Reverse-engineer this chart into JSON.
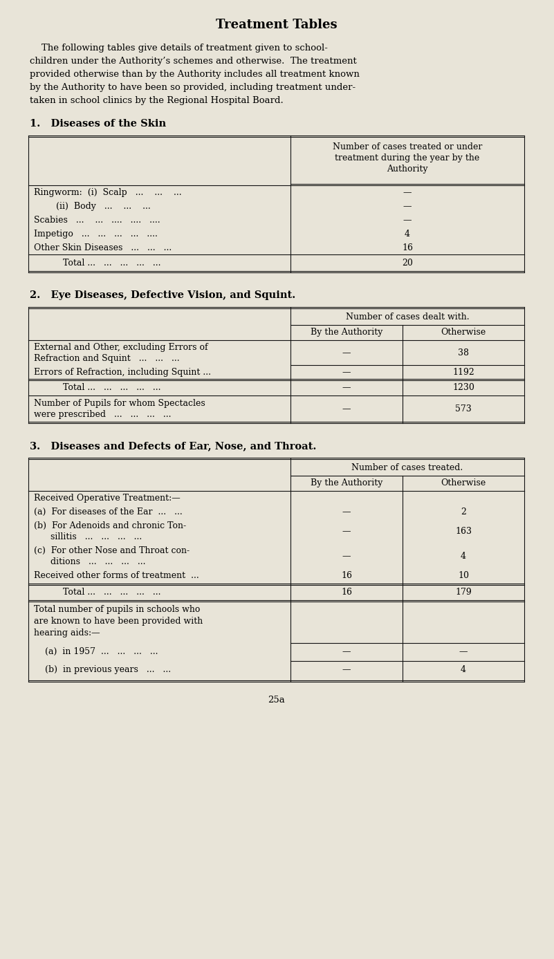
{
  "bg_color": "#e8e4d8",
  "title": "Treatment Tables",
  "intro_text": [
    "    The following tables give details of treatment given to school-",
    "children under the Authority’s schemes and otherwise.  The treatment",
    "provided otherwise than by the Authority includes all treatment known",
    "by the Authority to have been so provided, including treatment under-",
    "taken in school clinics by the Regional Hospital Board."
  ],
  "section1_title": "1.   Diseases of the Skin",
  "section1_col_header": "Number of cases treated or under\ntreatment during the year by the\nAuthority",
  "section1_rows": [
    {
      "label": "Ringworm:  (i)  Scalp   ...    ...    ...",
      "value": "—"
    },
    {
      "label": "        (ii)  Body   ...    ...    ...",
      "value": "—"
    },
    {
      "label": "Scabies   ...    ...   ....   ....   ....",
      "value": "—"
    },
    {
      "label": "Impetigo   ...   ...   ...   ...   ....",
      "value": "4"
    },
    {
      "label": "Other Skin Diseases   ...   ...   ...",
      "value": "16"
    }
  ],
  "section1_total_label": "Total ...   ...   ...   ...   ...",
  "section1_total_value": "20",
  "section2_title": "2.   Eye Diseases, Defective Vision, and Squint.",
  "section2_main_header": "Number of cases dealt with.",
  "section2_sub_headers": [
    "By the Authority",
    "Otherwise"
  ],
  "section2_rows": [
    {
      "label_line1": "External and Other, excluding Errors of",
      "label_line2": "Refraction and Squint   ...   ...   ...",
      "authority": "—",
      "otherwise": "38"
    },
    {
      "label_line1": "Errors of Refraction, including Squint ...",
      "label_line2": "",
      "authority": "—",
      "otherwise": "1192"
    }
  ],
  "section2_total_label": "Total ...   ...   ...   ...   ...",
  "section2_total_authority": "—",
  "section2_total_otherwise": "1230",
  "section2_extra_line1": "Number of Pupils for whom Spectacles",
  "section2_extra_line2": "were prescribed   ...   ...   ...   ...",
  "section2_extra_authority": "—",
  "section2_extra_otherwise": "573",
  "section3_title": "3.   Diseases and Defects of Ear, Nose, and Throat.",
  "section3_main_header": "Number of cases treated.",
  "section3_sub_headers": [
    "By the Authority",
    "Otherwise"
  ],
  "section3_operative_label": "Received Operative Treatment:—",
  "section3_rows": [
    {
      "label_line1": "(a)  For diseases of the Ear  ...   ...",
      "label_line2": "",
      "authority": "—",
      "otherwise": "2"
    },
    {
      "label_line1": "(b)  For Adenoids and chronic Ton-",
      "label_line2": "      sillitis   ...   ...   ...   ...",
      "authority": "—",
      "otherwise": "163"
    },
    {
      "label_line1": "(c)  For other Nose and Throat con-",
      "label_line2": "      ditions   ...   ...   ...   ...",
      "authority": "—",
      "otherwise": "4"
    },
    {
      "label_line1": "Received other forms of treatment  ...",
      "label_line2": "",
      "authority": "16",
      "otherwise": "10"
    }
  ],
  "section3_total_label": "Total ...   ...   ...   ...   ...",
  "section3_total_authority": "16",
  "section3_total_otherwise": "179",
  "section3_hearing_line1": "Total number of pupils in schools who",
  "section3_hearing_line2": "are known to have been provided with",
  "section3_hearing_line3": "hearing aids:—",
  "section3_hearing_rows": [
    {
      "label": "    (a)  in 1957  ...   ...   ...   ...",
      "authority": "—",
      "otherwise": "—"
    },
    {
      "label": "    (b)  in previous years   ...   ...",
      "authority": "—",
      "otherwise": "4"
    }
  ],
  "page_number": "25a"
}
